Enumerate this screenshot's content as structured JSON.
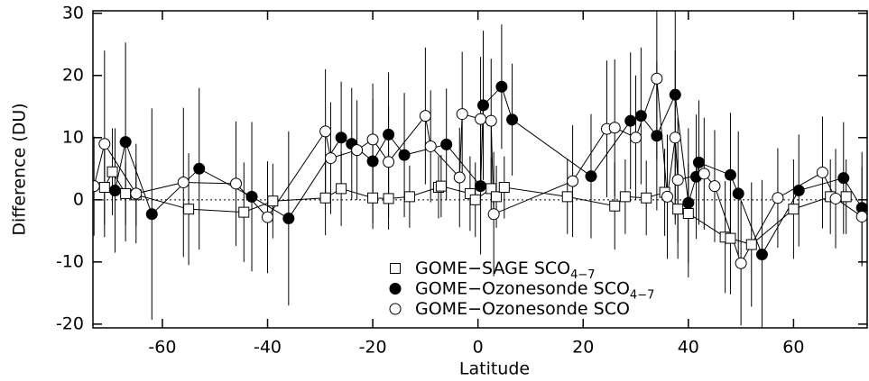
{
  "chart_data": {
    "type": "scatter",
    "xlabel": "Latitude",
    "ylabel": "Difference (DU)",
    "xlim": [
      -73.2,
      74
    ],
    "ylim": [
      -20.6,
      30.4
    ],
    "xticks": [
      -60,
      -40,
      -20,
      0,
      20,
      40,
      60
    ],
    "yticks": [
      -20,
      -10,
      0,
      10,
      20,
      30
    ],
    "zero_line": true,
    "series": [
      {
        "name": "GOME−SAGE SCO",
        "subscript": "4−7",
        "marker": "square",
        "color": "#000000",
        "x": [
          -71,
          -69.5,
          -67,
          -65,
          -55,
          -44.5,
          -39,
          -29,
          -26,
          -20,
          -17,
          -13,
          -7.5,
          -7,
          -1.5,
          -0.5,
          2.5,
          3.5,
          5,
          17,
          26,
          28,
          32,
          35.5,
          38,
          40,
          47,
          48,
          52,
          60,
          67,
          70
        ],
        "values": [
          2,
          4.5,
          1,
          0.8,
          -1.5,
          -2,
          -0.2,
          0.3,
          1.8,
          0.3,
          0.2,
          0.5,
          2,
          2.2,
          1,
          0,
          1.8,
          0.5,
          2,
          0.5,
          -1,
          0.5,
          0.3,
          1.2,
          -1.5,
          -2.2,
          -6,
          -6.2,
          -7.2,
          -1.5,
          0.5,
          0.5
        ],
        "errors": [
          6,
          7,
          5,
          5,
          9,
          8,
          6,
          6,
          6,
          5,
          5,
          5,
          5,
          5,
          6,
          6,
          5,
          5,
          5,
          6,
          7,
          6,
          6,
          7,
          8,
          8,
          9,
          9,
          10,
          8,
          6,
          6
        ]
      },
      {
        "name": "GOME−Ozonesonde SCO",
        "subscript": "4−7",
        "marker": "filled-circle",
        "color": "#000000",
        "x": [
          -69,
          -67,
          -62,
          -53,
          -43,
          -36,
          -26,
          -24,
          -20,
          -17,
          -14,
          -6,
          0.5,
          1,
          4.5,
          6.5,
          21.5,
          29,
          31,
          34,
          37.5,
          40,
          41.5,
          42,
          48,
          49.5,
          54,
          61,
          69.5,
          73
        ],
        "values": [
          1.5,
          9.3,
          -2.3,
          5,
          0.5,
          -3,
          10,
          9,
          6.2,
          10.5,
          7.2,
          8.9,
          2.2,
          15.2,
          18.2,
          12.9,
          3.8,
          12.7,
          13.5,
          10.3,
          16.9,
          -0.5,
          3.7,
          6,
          4,
          1,
          -8.8,
          1.5,
          3.5,
          -1.3
        ],
        "errors": [
          10,
          16,
          17,
          13,
          12,
          14,
          9,
          9,
          10,
          10,
          10,
          9,
          11,
          12,
          10,
          9,
          10,
          11,
          11,
          12,
          20,
          12,
          10,
          10,
          10,
          10,
          12,
          9,
          9,
          9
        ]
      },
      {
        "name": "GOME−Ozonesonde SCO",
        "marker": "open-circle",
        "color": "#000000",
        "x": [
          -73,
          -71,
          -65,
          -56,
          -46,
          -40,
          -29,
          -28,
          -23,
          -20,
          -17,
          -10,
          -9,
          -3.5,
          -3,
          0.5,
          2.5,
          3,
          18,
          24.5,
          26,
          30,
          34,
          36,
          37.5,
          38,
          43,
          45,
          50,
          57,
          65.5,
          68,
          73
        ],
        "values": [
          2.2,
          9,
          1,
          2.8,
          2.6,
          -2.8,
          11,
          6.7,
          8,
          9.7,
          6.1,
          13.5,
          8.6,
          3.6,
          13.8,
          13,
          12.7,
          -2.3,
          3,
          11.4,
          11.6,
          10,
          19.5,
          0.5,
          10,
          3.2,
          4.2,
          2.2,
          -10.2,
          0.3,
          4.4,
          0.2,
          -2.7
        ],
        "errors": [
          8,
          15,
          8,
          12,
          10,
          9,
          10,
          9,
          8,
          9,
          9,
          11,
          9,
          8,
          10,
          10,
          10,
          10,
          9,
          11,
          11,
          10,
          13,
          10,
          14,
          10,
          9,
          9,
          10,
          8,
          9,
          8,
          8
        ]
      }
    ]
  }
}
